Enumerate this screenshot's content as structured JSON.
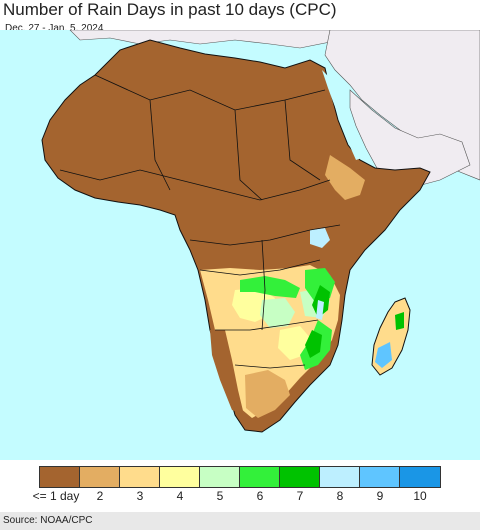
{
  "header": {
    "title": "Number of Rain Days in past 10 days (CPC)",
    "subtitle": "Dec. 27 - Jan. 5, 2024"
  },
  "legend": {
    "items": [
      {
        "label": "<= 1 day",
        "color": "#a4642f"
      },
      {
        "label": "2",
        "color": "#e3ad62"
      },
      {
        "label": "3",
        "color": "#ffdc8c"
      },
      {
        "label": "4",
        "color": "#ffff9e"
      },
      {
        "label": "5",
        "color": "#c7ffc4"
      },
      {
        "label": "6",
        "color": "#33f03a"
      },
      {
        "label": "7",
        "color": "#00c200"
      },
      {
        "label": "8",
        "color": "#bdefff"
      },
      {
        "label": "9",
        "color": "#5fc5ff"
      },
      {
        "label": "10",
        "color": "#1a96e6"
      }
    ]
  },
  "map": {
    "ocean_color": "#c4fcff",
    "outside_land_color": "#f0ecf1",
    "border_color": "#111111"
  },
  "footer": {
    "source": "Source: NOAA/CPC"
  }
}
